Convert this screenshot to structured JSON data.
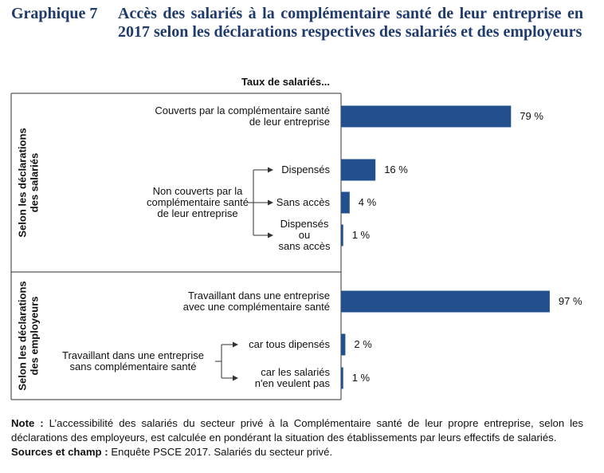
{
  "figure": {
    "number": "Graphique 7",
    "title": "Accès des salariés à la complémentaire santé de leur entreprise en 2017 selon les déclarations respectives des salariés et des employeurs"
  },
  "chart_data": {
    "type": "bar",
    "orientation": "horizontal",
    "header": "Taux de salariés...",
    "unit": "%",
    "xlim": [
      0,
      100
    ],
    "color": "#22508f",
    "groups": [
      {
        "label": [
          "Selon les déclarations",
          "des salariés"
        ],
        "bars": [
          {
            "label": [
              "Couverts par la complémentaire santé",
              "de leur entreprise"
            ],
            "value": 79,
            "value_label": "79 %"
          },
          {
            "label": [
              "Dispensés"
            ],
            "value": 16,
            "value_label": "16 %"
          },
          {
            "label": [
              "Sans accès"
            ],
            "value": 4,
            "value_label": "4 %"
          },
          {
            "label": [
              "Dispensés",
              "ou",
              "sans accès"
            ],
            "value": 1,
            "value_label": "1 %"
          }
        ],
        "parent": {
          "label": [
            "Non couverts par la",
            "complémentaire santé",
            "de leur entreprise"
          ]
        }
      },
      {
        "label": [
          "Selon les déclarations",
          "des employeurs"
        ],
        "bars": [
          {
            "label": [
              "Travaillant dans une entreprise",
              "avec une complémentaire santé"
            ],
            "value": 97,
            "value_label": "97 %"
          },
          {
            "label": [
              "car tous dipensés"
            ],
            "value": 2,
            "value_label": "2 %"
          },
          {
            "label": [
              "car les salariés",
              "n'en veulent pas"
            ],
            "value": 1,
            "value_label": "1 %"
          }
        ],
        "parent": {
          "label": [
            "Travaillant dans une entreprise",
            "sans complémentaire santé"
          ]
        }
      }
    ]
  },
  "note": {
    "note_label": "Note :",
    "note_text": " L’accessibilité des salariés du secteur privé à la Complémentaire santé de leur propre entreprise, selon les déclarations des employeurs, est calculée en pondérant la situation des établissements par leurs effectifs de salariés.",
    "sources_label": "Sources et champ :",
    "sources_text": " Enquête PSCE 2017. Salariés du secteur privé."
  }
}
